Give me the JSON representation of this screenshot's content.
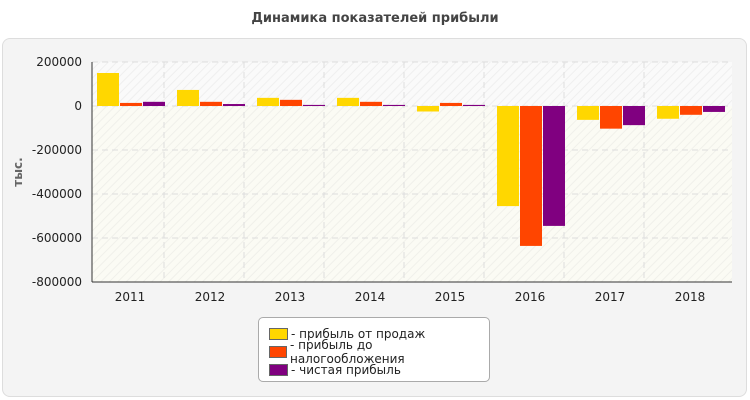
{
  "chart_data": {
    "type": "bar",
    "title": "Динамика показателей прибыли",
    "ylabel": "тыс.",
    "xlabel": "",
    "ylim": [
      -800000,
      200000
    ],
    "yticks": [
      "200000",
      "0",
      "-200000",
      "-400000",
      "-600000",
      "-800000"
    ],
    "grid": true,
    "legend_position": "bottom",
    "categories": [
      "2011",
      "2012",
      "2013",
      "2014",
      "2015",
      "2016",
      "2017",
      "2018"
    ],
    "series": [
      {
        "name": "- прибыль от продаж",
        "color": "#ffd700",
        "values": [
          150000,
          73000,
          37000,
          37000,
          -25000,
          -455000,
          -63000,
          -58000
        ]
      },
      {
        "name": "- прибыль до налогообложения",
        "color": "#ff4500",
        "values": [
          14000,
          19000,
          28000,
          19000,
          14000,
          -636000,
          -103000,
          -40000
        ]
      },
      {
        "name": "- чистая прибыль",
        "color": "#800080",
        "values": [
          19000,
          9000,
          5000,
          5000,
          5000,
          -545000,
          -87000,
          -27000
        ]
      }
    ]
  }
}
